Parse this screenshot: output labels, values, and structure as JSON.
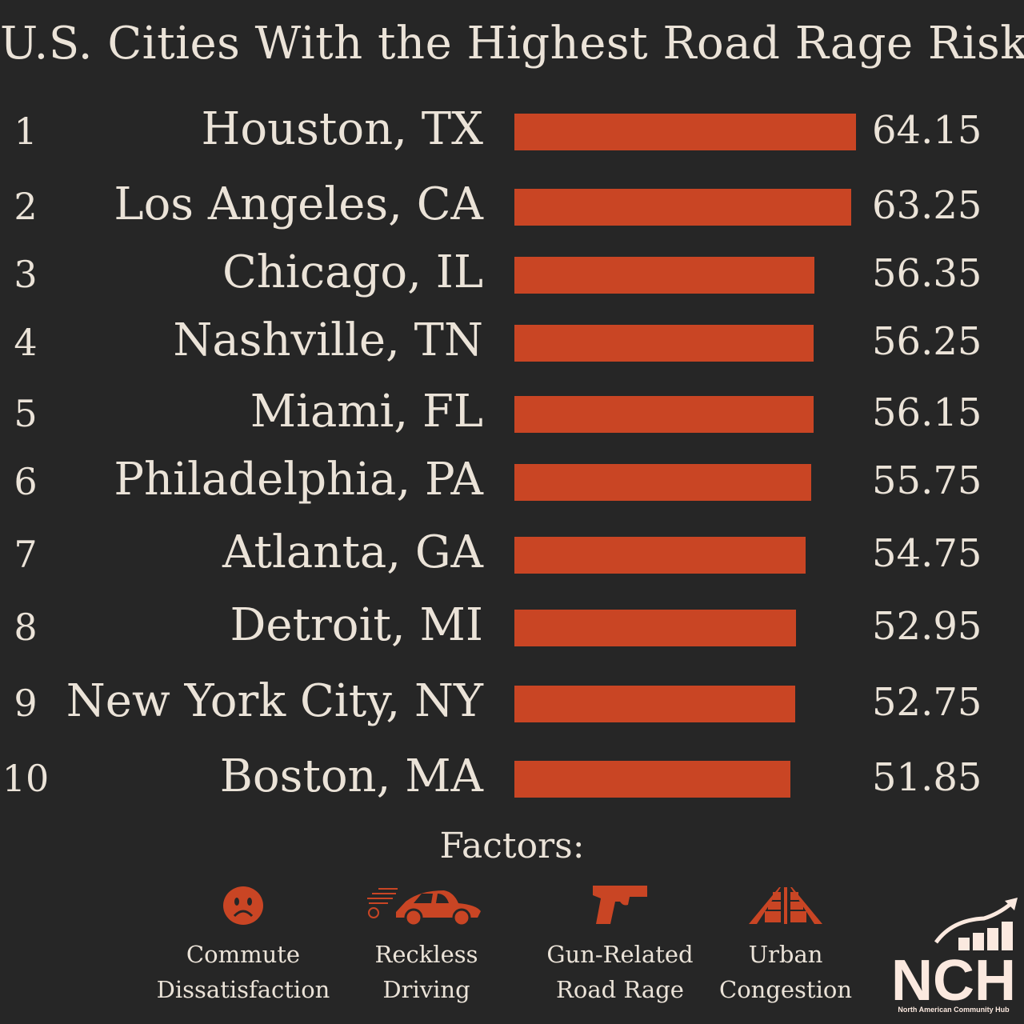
{
  "chart_data": {
    "type": "bar",
    "orientation": "horizontal",
    "title": "U.S. Cities With the Highest Road Rage Risk",
    "ranks": [
      "1",
      "2",
      "3",
      "4",
      "5",
      "6",
      "7",
      "8",
      "9",
      "10"
    ],
    "categories": [
      "Houston, TX",
      "Los Angeles, CA",
      "Chicago, IL",
      "Nashville, TN",
      "Miami, FL",
      "Philadelphia, PA",
      "Atlanta, GA",
      "Detroit, MI",
      "New York City, NY",
      "Boston, MA"
    ],
    "values": [
      64.15,
      63.25,
      56.35,
      56.25,
      56.15,
      55.75,
      54.75,
      52.95,
      52.75,
      51.85
    ],
    "value_labels": [
      "64.15",
      "63.25",
      "56.35",
      "56.25",
      "56.15",
      "55.75",
      "54.75",
      "52.95",
      "52.75",
      "51.85"
    ],
    "bar_color": "#c94524",
    "grid": false
  },
  "factors": {
    "heading": "Factors:",
    "items": [
      {
        "icon": "sad-face-icon",
        "line1": "Commute",
        "line2": "Dissatisfaction"
      },
      {
        "icon": "speeding-car-icon",
        "line1": "Reckless",
        "line2": "Driving"
      },
      {
        "icon": "handgun-icon",
        "line1": "Gun-Related",
        "line2": "Road Rage"
      },
      {
        "icon": "traffic-jam-icon",
        "line1": "Urban",
        "line2": "Congestion"
      }
    ]
  },
  "logo": {
    "text": "NCH",
    "subtitle": "North American Community Hub"
  },
  "colors": {
    "background": "#262626",
    "text": "#ebe3d8",
    "accent": "#c94524"
  }
}
